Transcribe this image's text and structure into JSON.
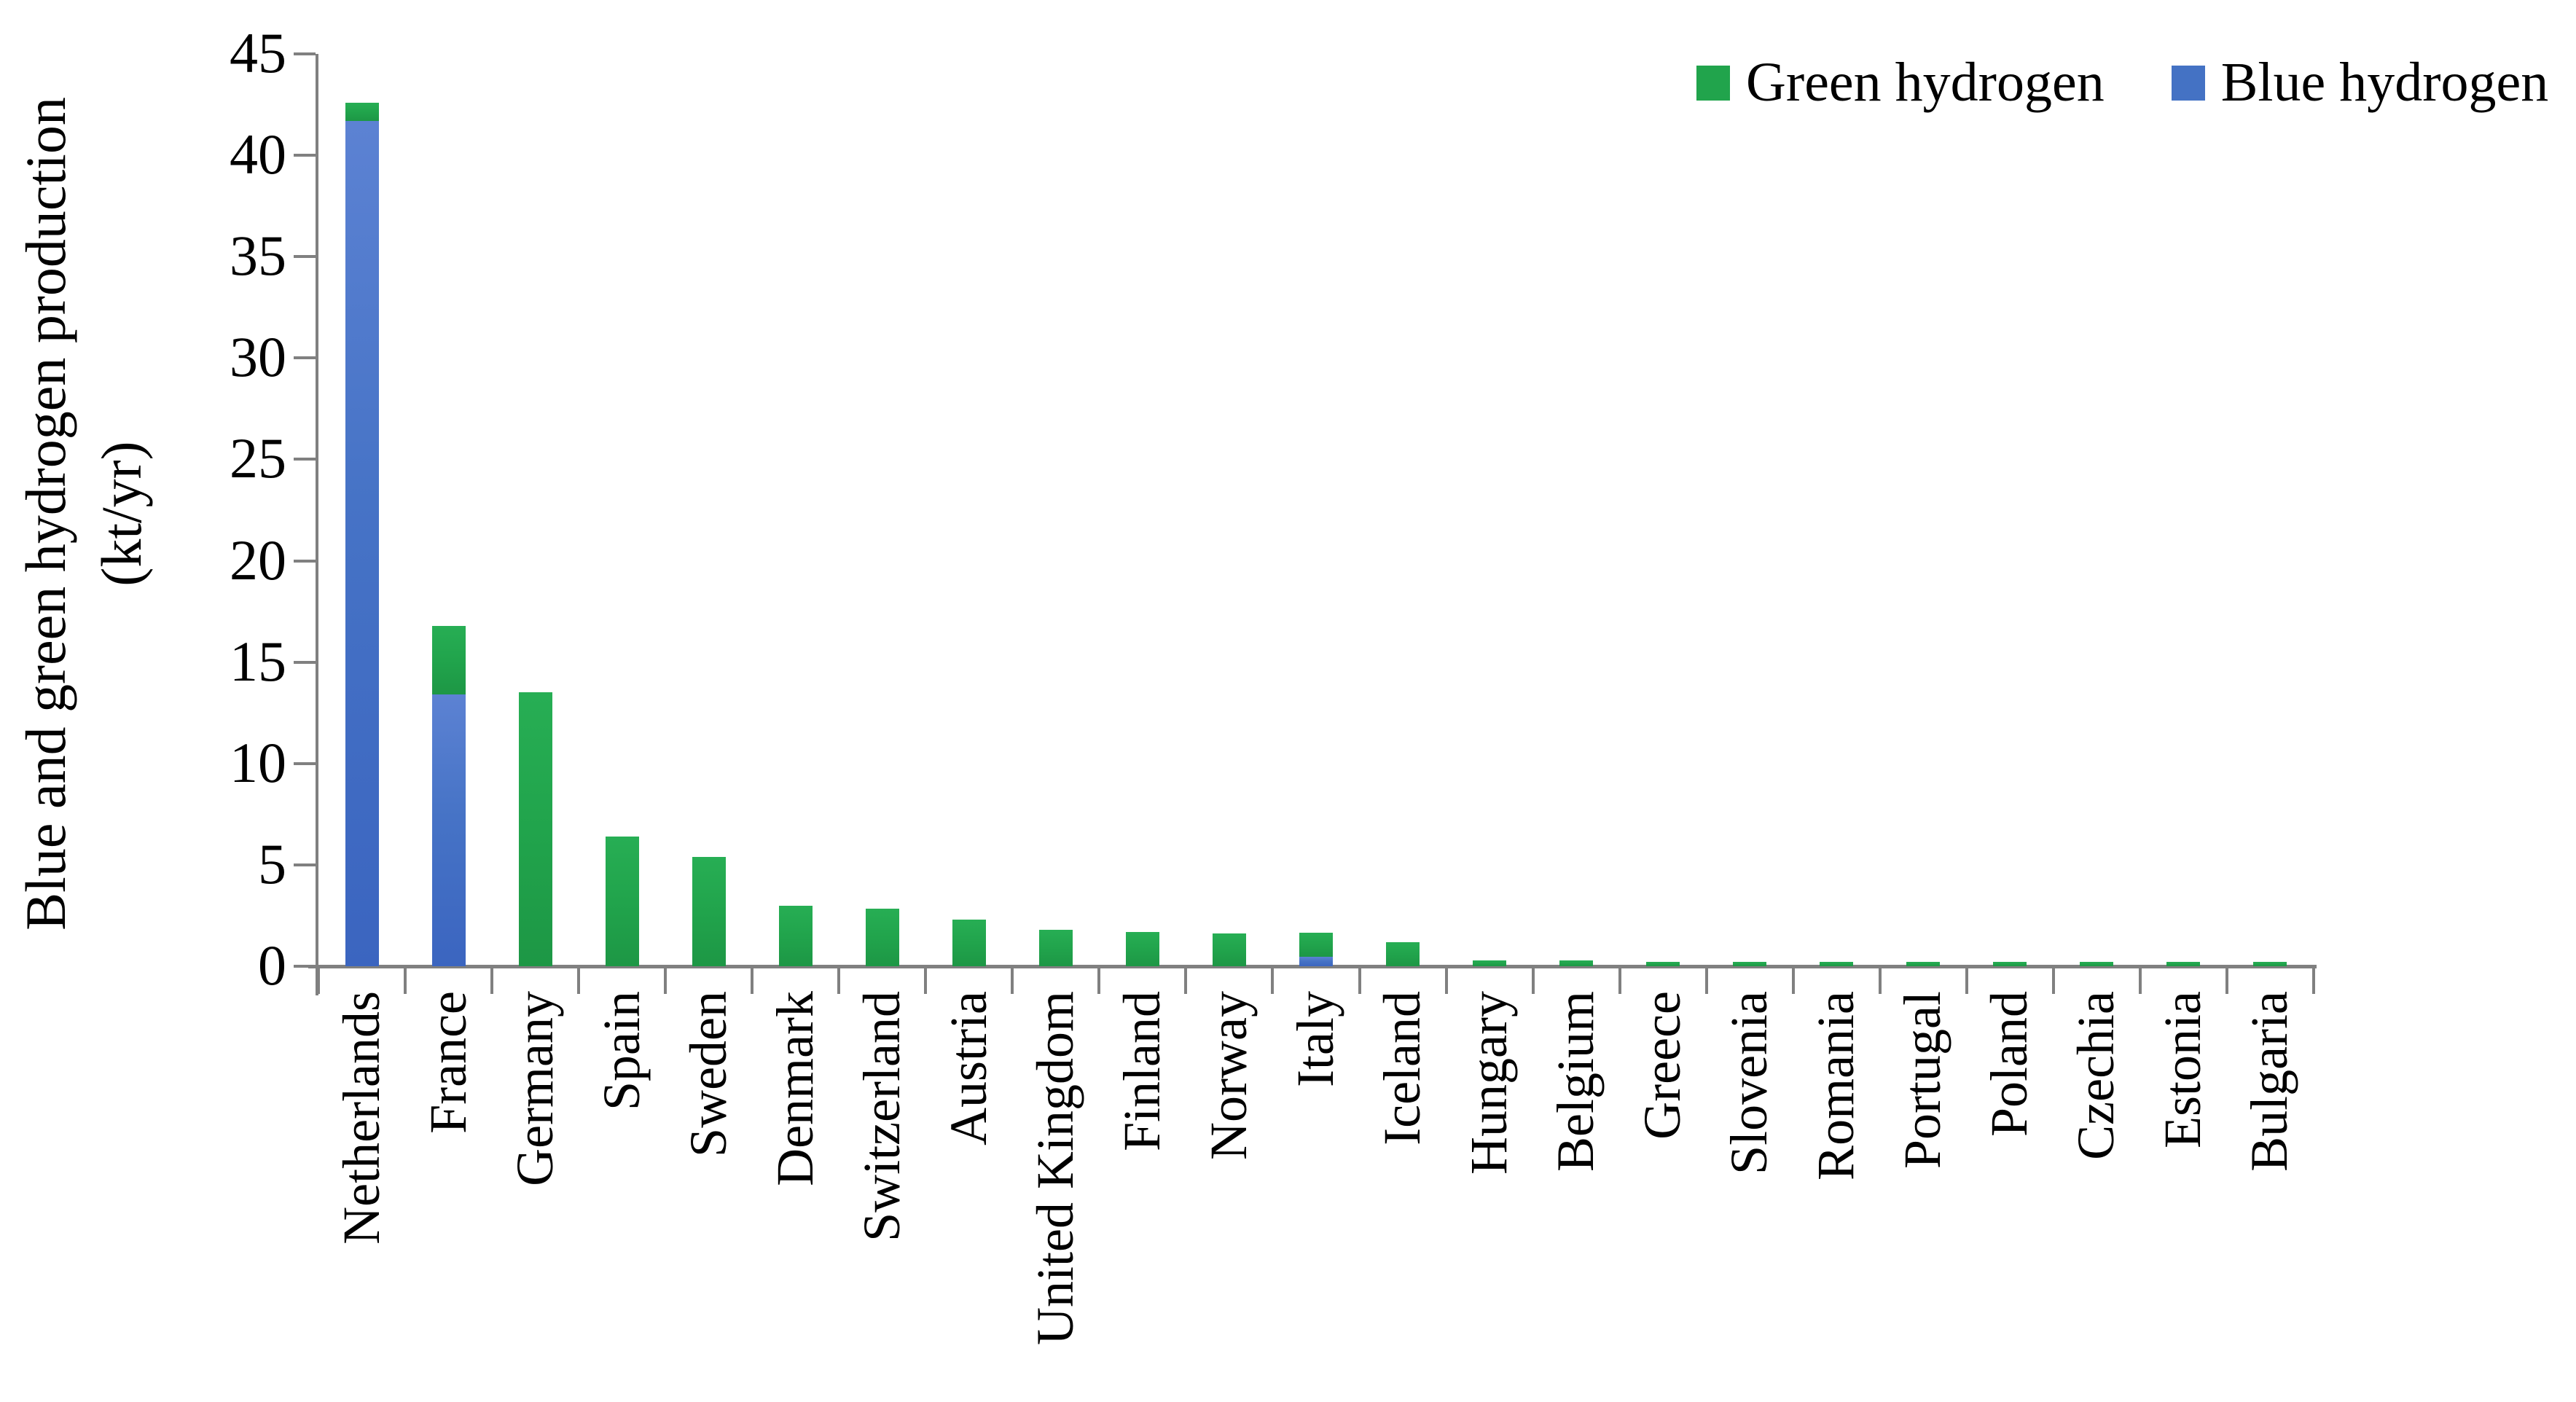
{
  "figure": {
    "y_axis_title_line1": "Blue and green hydrogen production",
    "y_axis_title_line2": "(kt/yr)"
  },
  "legend": {
    "items": [
      {
        "label": "Green hydrogen",
        "color": "#21a44c"
      },
      {
        "label": "Blue hydrogen",
        "color": "#4472c4"
      }
    ]
  },
  "chart_data": {
    "type": "bar",
    "stacked": true,
    "title": "",
    "xlabel": "",
    "ylabel": "Blue and green hydrogen production (kt/yr)",
    "ylim": [
      0,
      45
    ],
    "yticks": [
      0,
      5,
      10,
      15,
      20,
      25,
      30,
      35,
      40,
      45
    ],
    "grid": false,
    "legend_position": "top-right",
    "bar_colors": {
      "green": "#21a44c",
      "blue": "#4472c4"
    },
    "axis_color": "#808080",
    "categories": [
      "Netherlands",
      "France",
      "Germany",
      "Spain",
      "Sweden",
      "Denmark",
      "Switzerland",
      "Austria",
      "United Kingdom",
      "Finland",
      "Norway",
      "Italy",
      "Iceland",
      "Hungary",
      "Belgium",
      "Greece",
      "Slovenia",
      "Romania",
      "Portugal",
      "Poland",
      "Czechia",
      "Estonia",
      "Bulgaria"
    ],
    "series": [
      {
        "name": "Blue hydrogen",
        "color": "#4472c4",
        "values": [
          41.7,
          13.4,
          0,
          0,
          0,
          0,
          0,
          0,
          0,
          0,
          0,
          0.45,
          0,
          0,
          0,
          0,
          0,
          0,
          0,
          0,
          0,
          0,
          0
        ]
      },
      {
        "name": "Green hydrogen",
        "color": "#21a44c",
        "values": [
          0.9,
          3.4,
          13.5,
          6.4,
          5.4,
          3.0,
          2.85,
          2.3,
          1.8,
          1.7,
          1.6,
          1.2,
          1.2,
          0.3,
          0.3,
          0.2,
          0.2,
          0.2,
          0.2,
          0.2,
          0.2,
          0.2,
          0.2
        ]
      }
    ]
  }
}
